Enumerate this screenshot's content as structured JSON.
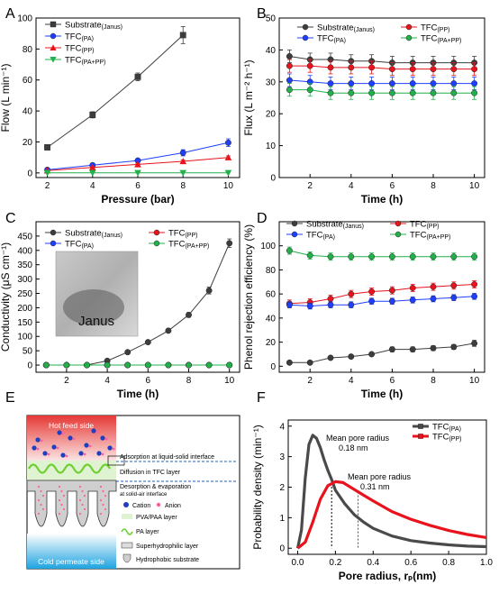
{
  "chart_data": [
    {
      "panel_label": "A",
      "type": "line",
      "xlabel": "Pressure (bar)",
      "ylabel": "Flow (L min⁻¹)",
      "xlim": [
        1.5,
        10.5
      ],
      "ylim": [
        -3,
        100
      ],
      "xticks": [
        "2",
        "4",
        "6",
        "8",
        "10"
      ],
      "yticks": [
        "0",
        "20",
        "40",
        "60",
        "80",
        "100"
      ],
      "legend_position": "top-left",
      "series": [
        {
          "name": "Substrate",
          "subscript": "(Janus)",
          "color": "#3d3d3d",
          "marker": "square",
          "x": [
            2,
            4,
            6,
            8
          ],
          "values": [
            16.5,
            37.5,
            62,
            89
          ],
          "err": [
            1,
            2,
            2.5,
            5.5
          ]
        },
        {
          "name": "TFC",
          "subscript": "(PA)",
          "color": "#1f3fff",
          "marker": "circle",
          "x": [
            2,
            4,
            6,
            8,
            10
          ],
          "values": [
            2,
            5,
            8,
            13,
            19.5
          ],
          "err": [
            0.5,
            1,
            1,
            2,
            2.5
          ]
        },
        {
          "name": "TFC",
          "subscript": "(PP)",
          "color": "#e8131c",
          "marker": "triangle-up",
          "x": [
            2,
            4,
            6,
            8,
            10
          ],
          "values": [
            1.5,
            3.5,
            5.5,
            7.5,
            10
          ],
          "err": [
            0.3,
            0.5,
            0.5,
            0.8,
            1
          ]
        },
        {
          "name": "TFC",
          "subscript": "(PA+PP)",
          "color": "#22b04a",
          "marker": "triangle-down",
          "x": [
            2,
            4,
            6,
            8,
            10
          ],
          "values": [
            0,
            0,
            0,
            0,
            0
          ],
          "err": [
            0,
            0,
            0,
            0,
            0
          ]
        }
      ]
    },
    {
      "panel_label": "B",
      "type": "line",
      "xlabel": "Time (h)",
      "ylabel": "Flux (L m⁻² h⁻¹)",
      "xlim": [
        0.5,
        10.5
      ],
      "ylim": [
        0,
        50
      ],
      "xticks": [
        "0",
        "2",
        "4",
        "6",
        "8",
        "10"
      ],
      "yticks": [
        "0",
        "10",
        "20",
        "30",
        "40",
        "50"
      ],
      "legend_position": "top",
      "series": [
        {
          "name": "Substrate",
          "subscript": "(Janus)",
          "color": "#3d3d3d",
          "marker": "circle",
          "x": [
            1,
            2,
            3,
            4,
            5,
            6,
            7,
            8,
            9,
            10
          ],
          "values": [
            38,
            37,
            37,
            36.5,
            36.5,
            36,
            36,
            36,
            36,
            36
          ],
          "err": [
            2,
            2,
            2,
            2,
            2,
            2,
            2,
            2,
            2,
            2
          ]
        },
        {
          "name": "TFC",
          "subscript": "(PP)",
          "color": "#e8131c",
          "marker": "circle",
          "x": [
            1,
            2,
            3,
            4,
            5,
            6,
            7,
            8,
            9,
            10
          ],
          "values": [
            35,
            35,
            34.5,
            34.5,
            34.5,
            34,
            34,
            34,
            34,
            34
          ],
          "err": [
            2,
            2,
            2,
            2,
            2,
            2,
            2,
            2,
            2,
            2
          ]
        },
        {
          "name": "TFC",
          "subscript": "(PA)",
          "color": "#1f3fff",
          "marker": "circle",
          "x": [
            1,
            2,
            3,
            4,
            5,
            6,
            7,
            8,
            9,
            10
          ],
          "values": [
            30.5,
            30,
            29.5,
            29.5,
            29.5,
            29.5,
            29.5,
            29.5,
            29.5,
            29.5
          ],
          "err": [
            2,
            2,
            2,
            2,
            2,
            2,
            2,
            2,
            2,
            2
          ]
        },
        {
          "name": "TFC",
          "subscript": "(PA+PP)",
          "color": "#22b04a",
          "marker": "circle",
          "x": [
            1,
            2,
            3,
            4,
            5,
            6,
            7,
            8,
            9,
            10
          ],
          "values": [
            27.5,
            27.5,
            26.5,
            26.5,
            26.5,
            26.5,
            26.5,
            26.5,
            26.5,
            26.5
          ],
          "err": [
            2,
            2,
            2,
            2,
            2,
            2,
            2,
            2,
            2,
            2
          ]
        }
      ]
    },
    {
      "panel_label": "C",
      "type": "line",
      "xlabel": "Time (h)",
      "ylabel": "Conductivity (μS cm⁻¹)",
      "xlim": [
        0.5,
        10.5
      ],
      "ylim": [
        -25,
        500
      ],
      "xticks": [
        "0",
        "2",
        "4",
        "6",
        "8",
        "10"
      ],
      "yticks": [
        "0",
        "50",
        "100",
        "150",
        "200",
        "250",
        "300",
        "350",
        "400",
        "450"
      ],
      "legend_position": "top",
      "inset_label": "Janus",
      "series": [
        {
          "name": "Substrate",
          "subscript": "(Janus)",
          "color": "#3d3d3d",
          "marker": "circle",
          "x": [
            1,
            2,
            3,
            4,
            5,
            6,
            7,
            8,
            9,
            10
          ],
          "values": [
            0,
            0,
            0,
            15,
            45,
            80,
            120,
            175,
            260,
            425
          ],
          "err": [
            0,
            0,
            0,
            3,
            4,
            5,
            6,
            8,
            12,
            15
          ]
        },
        {
          "name": "TFC",
          "subscript": "(PP)",
          "color": "#e8131c",
          "marker": "circle",
          "x": [
            1,
            2,
            3,
            4,
            5,
            6,
            7,
            8,
            9,
            10
          ],
          "values": [
            0,
            0,
            0,
            0,
            0,
            0,
            0,
            0,
            0,
            0
          ],
          "err": [
            0,
            0,
            0,
            0,
            0,
            0,
            0,
            0,
            0,
            0
          ]
        },
        {
          "name": "TFC",
          "subscript": "(PA)",
          "color": "#1f3fff",
          "marker": "circle",
          "x": [
            1,
            2,
            3,
            4,
            5,
            6,
            7,
            8,
            9,
            10
          ],
          "values": [
            0,
            0,
            0,
            0,
            0,
            0,
            0,
            0,
            0,
            0
          ],
          "err": [
            0,
            0,
            0,
            0,
            0,
            0,
            0,
            0,
            0,
            0
          ]
        },
        {
          "name": "TFC",
          "subscript": "(PA+PP)",
          "color": "#22b04a",
          "marker": "circle",
          "x": [
            1,
            2,
            3,
            4,
            5,
            6,
            7,
            8,
            9,
            10
          ],
          "values": [
            0,
            0,
            0,
            0,
            0,
            0,
            0,
            0,
            0,
            0
          ],
          "err": [
            0,
            0,
            0,
            0,
            0,
            0,
            0,
            0,
            0,
            0
          ]
        }
      ]
    },
    {
      "panel_label": "D",
      "type": "line",
      "xlabel": "Time (h)",
      "ylabel": "Phenol rejection efficiency (%)",
      "xlim": [
        0.5,
        10.5
      ],
      "ylim": [
        -5,
        120
      ],
      "xticks": [
        "0",
        "2",
        "4",
        "6",
        "8",
        "10"
      ],
      "yticks": [
        "0",
        "20",
        "40",
        "60",
        "80",
        "100"
      ],
      "legend_position": "top",
      "series": [
        {
          "name": "Substrate",
          "subscript": "(Janus)",
          "color": "#3d3d3d",
          "marker": "circle",
          "x": [
            1,
            2,
            3,
            4,
            5,
            6,
            7,
            8,
            9,
            10
          ],
          "values": [
            3,
            3,
            7,
            8,
            10,
            14,
            14,
            15,
            16,
            19
          ],
          "err": [
            1,
            1,
            1.5,
            1.5,
            1.5,
            2,
            2,
            2,
            2,
            2.5
          ]
        },
        {
          "name": "TFC",
          "subscript": "(PP)",
          "color": "#e8131c",
          "marker": "circle",
          "x": [
            1,
            2,
            3,
            4,
            5,
            6,
            7,
            8,
            9,
            10
          ],
          "values": [
            52,
            53,
            56,
            60,
            62,
            63,
            65,
            66,
            67,
            68
          ],
          "err": [
            3,
            3,
            3,
            3,
            3,
            3,
            3,
            3,
            3,
            3
          ]
        },
        {
          "name": "TFC",
          "subscript": "(PA)",
          "color": "#1f3fff",
          "marker": "circle",
          "x": [
            1,
            2,
            3,
            4,
            5,
            6,
            7,
            8,
            9,
            10
          ],
          "values": [
            51,
            50,
            51,
            51,
            54,
            54,
            55,
            56,
            57,
            58
          ],
          "err": [
            2.5,
            2.5,
            2.5,
            2.5,
            2.5,
            2.5,
            2.5,
            2.5,
            2.5,
            2.5
          ]
        },
        {
          "name": "TFC",
          "subscript": "(PA+PP)",
          "color": "#22b04a",
          "marker": "circle",
          "x": [
            1,
            2,
            3,
            4,
            5,
            6,
            7,
            8,
            9,
            10
          ],
          "values": [
            96,
            92,
            91,
            91,
            91,
            91,
            91,
            91,
            91,
            91
          ],
          "err": [
            3,
            3,
            3,
            3,
            3,
            3,
            3,
            3,
            3,
            3
          ]
        }
      ]
    },
    {
      "panel_label": "F",
      "type": "line",
      "xlabel": "Pore radius, rₚ(nm)",
      "ylabel": "Probability density (min⁻¹)",
      "xlim": [
        -0.05,
        1.0
      ],
      "ylim": [
        -0.2,
        4.2
      ],
      "xticks": [
        "0.0",
        "0.2",
        "0.4",
        "0.6",
        "0.8",
        "1.0"
      ],
      "yticks": [
        "0",
        "1",
        "2",
        "3",
        "4"
      ],
      "legend_position": "top-right",
      "annotations": [
        {
          "text_lines": [
            "Mean pore radius",
            "0.18 nm"
          ],
          "color": "#000000"
        },
        {
          "text_lines": [
            "Mean pore radius",
            "0.31 nm"
          ],
          "color": "#000000"
        }
      ],
      "series": [
        {
          "name": "TFC",
          "subscript": "(PA)",
          "color": "#4a4a4a",
          "marker": "square",
          "x": [
            0.0,
            0.02,
            0.04,
            0.06,
            0.08,
            0.1,
            0.12,
            0.14,
            0.16,
            0.18,
            0.2,
            0.25,
            0.3,
            0.35,
            0.4,
            0.5,
            0.6,
            0.7,
            0.8,
            0.9,
            1.0
          ],
          "values": [
            0.0,
            0.6,
            2.3,
            3.4,
            3.7,
            3.6,
            3.3,
            2.9,
            2.55,
            2.25,
            1.9,
            1.45,
            1.1,
            0.85,
            0.65,
            0.4,
            0.25,
            0.17,
            0.11,
            0.07,
            0.05
          ]
        },
        {
          "name": "TFC",
          "subscript": "(PP)",
          "color": "#e8131c",
          "marker": "square",
          "x": [
            0.0,
            0.04,
            0.08,
            0.12,
            0.16,
            0.2,
            0.24,
            0.28,
            0.32,
            0.36,
            0.4,
            0.5,
            0.6,
            0.7,
            0.8,
            0.9,
            1.0
          ],
          "values": [
            0.0,
            0.2,
            0.85,
            1.6,
            2.05,
            2.18,
            2.15,
            2.0,
            1.85,
            1.7,
            1.55,
            1.2,
            0.95,
            0.75,
            0.58,
            0.45,
            0.35
          ]
        }
      ]
    }
  ],
  "schematic": {
    "panel_label": "E",
    "hot_side": "Hot feed side",
    "cold_side": "Cold permeate side",
    "steps": [
      "Adsorption at liquid-solid interface",
      "Diffusion in TFC layer",
      "Desorption  & evaporation",
      "at solid-air interface"
    ],
    "legend": [
      {
        "label": "Cation",
        "icon": "cation-dot"
      },
      {
        "label": "Anion",
        "icon": "anion-dot"
      },
      {
        "label": "PVA/PAA layer",
        "icon": "pva-layer-swatch"
      },
      {
        "label": "PA layer",
        "icon": "pa-layer-squiggle"
      },
      {
        "label": "Superhydrophilic layer",
        "icon": "superhydrophilic-swatch"
      },
      {
        "label": "Hydrophobic substrate",
        "icon": "hydrophobic-swatch"
      }
    ]
  }
}
